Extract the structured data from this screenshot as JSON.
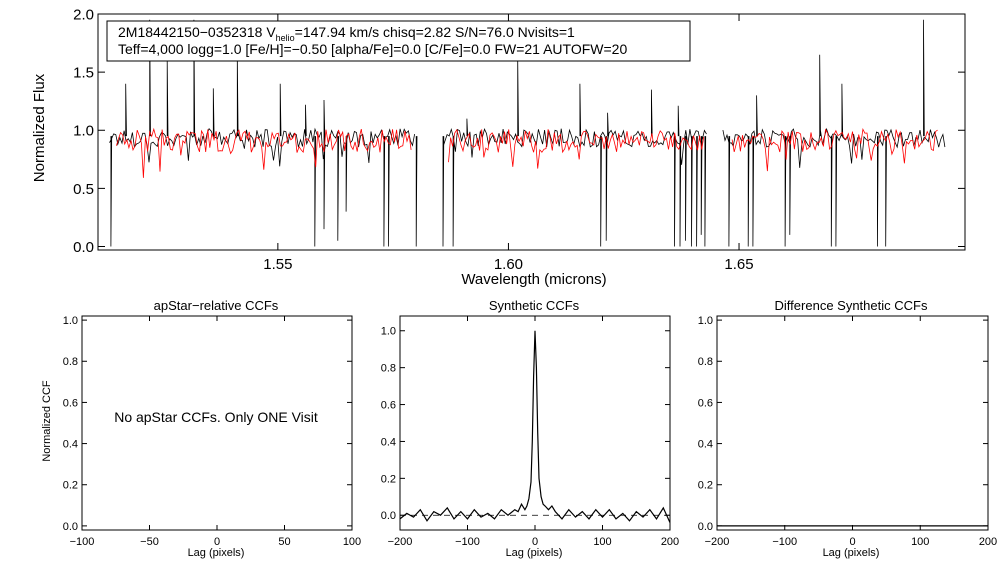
{
  "chart_data": [
    {
      "type": "line",
      "id": "spectrum",
      "xlabel": "Wavelength (microns)",
      "ylabel": "Normalized Flux",
      "xlim": [
        1.511,
        1.699
      ],
      "ylim": [
        -0.03,
        2.0
      ],
      "xticks": [
        1.55,
        1.6,
        1.65
      ],
      "xtick_labels": [
        "1.55",
        "1.60",
        "1.65"
      ],
      "yticks": [
        0.0,
        0.5,
        1.0,
        1.5,
        2.0
      ],
      "ytick_labels": [
        "0.0",
        "0.5",
        "1.0",
        "1.5",
        "2.0"
      ],
      "annotation": {
        "star_id": "2M18442150−0352318",
        "v_symbol": "V",
        "v_subscript": "helio",
        "line1_rest": "=147.94 km/s  chisq=2.82  S/N=76.0  Nvisits=1",
        "line2": "Teff=4,000 logg=1.0 [Fe/H]=−0.50 [alpha/Fe]=0.0 [C/Fe]=0.0 FW=21 AUTOFW=20"
      },
      "series": [
        {
          "color": "#000000",
          "segments": [
            [
              1.5135,
              1.58
            ],
            [
              1.5858,
              1.6433
            ],
            [
              1.6465,
              1.695
            ]
          ],
          "base": 0.95,
          "emission_lines": [
            [
              1.517,
              1.4
            ],
            [
              1.5222,
              1.95
            ],
            [
              1.526,
              1.6
            ],
            [
              1.5318,
              1.95
            ],
            [
              1.536,
              1.36
            ],
            [
              1.5412,
              1.65
            ],
            [
              1.5505,
              1.4
            ],
            [
              1.556,
              1.22
            ],
            [
              1.56,
              1.26
            ],
            [
              1.591,
              1.1
            ],
            [
              1.602,
              1.62
            ],
            [
              1.6155,
              1.4
            ],
            [
              1.6215,
              1.15
            ],
            [
              1.631,
              1.35
            ],
            [
              1.6368,
              1.21
            ],
            [
              1.6538,
              1.3
            ],
            [
              1.6675,
              1.65
            ],
            [
              1.6723,
              1.4
            ],
            [
              1.69,
              1.95
            ]
          ],
          "absorption_lines": [
            [
              1.5138,
              0.0
            ],
            [
              1.558,
              0.0
            ],
            [
              1.56,
              0.15
            ],
            [
              1.563,
              0.05
            ],
            [
              1.5648,
              0.3
            ],
            [
              1.573,
              0.0
            ],
            [
              1.574,
              0.0
            ],
            [
              1.58,
              0.0
            ],
            [
              1.5858,
              0.0
            ],
            [
              1.588,
              0.0
            ],
            [
              1.62,
              0.0
            ],
            [
              1.6212,
              0.05
            ],
            [
              1.636,
              0.0
            ],
            [
              1.6372,
              0.0
            ],
            [
              1.6384,
              0.05
            ],
            [
              1.6397,
              0.0
            ],
            [
              1.6408,
              0.0
            ],
            [
              1.6418,
              0.1
            ],
            [
              1.6426,
              0.0
            ],
            [
              1.6478,
              0.0
            ],
            [
              1.652,
              0.0
            ],
            [
              1.653,
              0.0
            ],
            [
              1.66,
              0.0
            ],
            [
              1.661,
              0.1
            ],
            [
              1.67,
              0.0
            ],
            [
              1.671,
              0.0
            ],
            [
              1.68,
              0.0
            ],
            [
              1.6818,
              0.0
            ]
          ]
        },
        {
          "color": "#ff0000",
          "segments": [
            [
              1.515,
              1.579
            ],
            [
              1.587,
              1.6425
            ],
            [
              1.6485,
              1.6935
            ]
          ],
          "base": 0.93
        }
      ]
    },
    {
      "type": "line",
      "id": "apstar_ccf",
      "title": "apStar−relative CCFs",
      "xlabel": "Lag (pixels)",
      "ylabel": "Normalized CCF",
      "xlim": [
        -100,
        100
      ],
      "ylim": [
        -0.02,
        1.02
      ],
      "xticks": [
        -100,
        -50,
        0,
        50,
        100
      ],
      "xtick_labels": [
        "−100",
        "−50",
        "0",
        "50",
        "100"
      ],
      "yticks": [
        0.0,
        0.2,
        0.4,
        0.6,
        0.8,
        1.0
      ],
      "ytick_labels": [
        "0.0",
        "0.2",
        "0.4",
        "0.6",
        "0.8",
        "1.0"
      ],
      "message": "No apStar CCFs.  Only ONE Visit",
      "series": []
    },
    {
      "type": "line",
      "id": "synthetic_ccf",
      "title": "Synthetic CCFs",
      "xlabel": "Lag (pixels)",
      "xlim": [
        -200,
        200
      ],
      "ylim": [
        -0.08,
        1.08
      ],
      "xticks": [
        -200,
        -100,
        0,
        100,
        200
      ],
      "xtick_labels": [
        "−200",
        "−100",
        "0",
        "100",
        "200"
      ],
      "yticks": [
        0.0,
        0.2,
        0.4,
        0.6,
        0.8,
        1.0
      ],
      "ytick_labels": [
        "0.0",
        "0.2",
        "0.4",
        "0.6",
        "0.8",
        "1.0"
      ],
      "series": [
        {
          "color": "#000000",
          "x": [
            -200,
            -190,
            -180,
            -170,
            -160,
            -150,
            -140,
            -130,
            -120,
            -110,
            -100,
            -90,
            -80,
            -70,
            -60,
            -50,
            -40,
            -30,
            -25,
            -20,
            -15,
            -12,
            -9,
            -6,
            -4,
            -2,
            0,
            2,
            4,
            6,
            9,
            12,
            15,
            20,
            25,
            30,
            40,
            50,
            60,
            70,
            80,
            90,
            100,
            110,
            120,
            130,
            140,
            150,
            160,
            170,
            180,
            190,
            200
          ],
          "y": [
            -0.02,
            0.01,
            -0.01,
            0.03,
            -0.03,
            0.02,
            0.0,
            0.04,
            -0.02,
            0.02,
            -0.02,
            0.03,
            -0.01,
            0.01,
            -0.02,
            0.03,
            0.0,
            0.03,
            0.02,
            0.06,
            0.03,
            0.05,
            0.09,
            0.18,
            0.4,
            0.75,
            1.0,
            0.8,
            0.45,
            0.2,
            0.1,
            0.06,
            0.05,
            0.03,
            0.05,
            0.02,
            -0.02,
            0.03,
            -0.01,
            0.02,
            -0.02,
            0.03,
            -0.01,
            0.03,
            -0.02,
            0.01,
            -0.03,
            0.02,
            -0.01,
            0.03,
            -0.02,
            0.04,
            -0.04
          ]
        }
      ],
      "reference_line": {
        "y": 0.0,
        "style": "dashed"
      }
    },
    {
      "type": "line",
      "id": "difference_ccf",
      "title": "Difference Synthetic CCFs",
      "xlabel": "Lag (pixels)",
      "xlim": [
        -200,
        200
      ],
      "ylim": [
        -0.02,
        1.02
      ],
      "xticks": [
        -200,
        -100,
        0,
        100,
        200
      ],
      "xtick_labels": [
        "−200",
        "−100",
        "0",
        "100",
        "200"
      ],
      "yticks": [
        0.0,
        0.2,
        0.4,
        0.6,
        0.8,
        1.0
      ],
      "ytick_labels": [
        "0.0",
        "0.2",
        "0.4",
        "0.6",
        "0.8",
        "1.0"
      ],
      "series": [
        {
          "color": "#000000",
          "x": [
            -200,
            200
          ],
          "y": [
            0.0,
            0.0
          ]
        }
      ]
    }
  ]
}
